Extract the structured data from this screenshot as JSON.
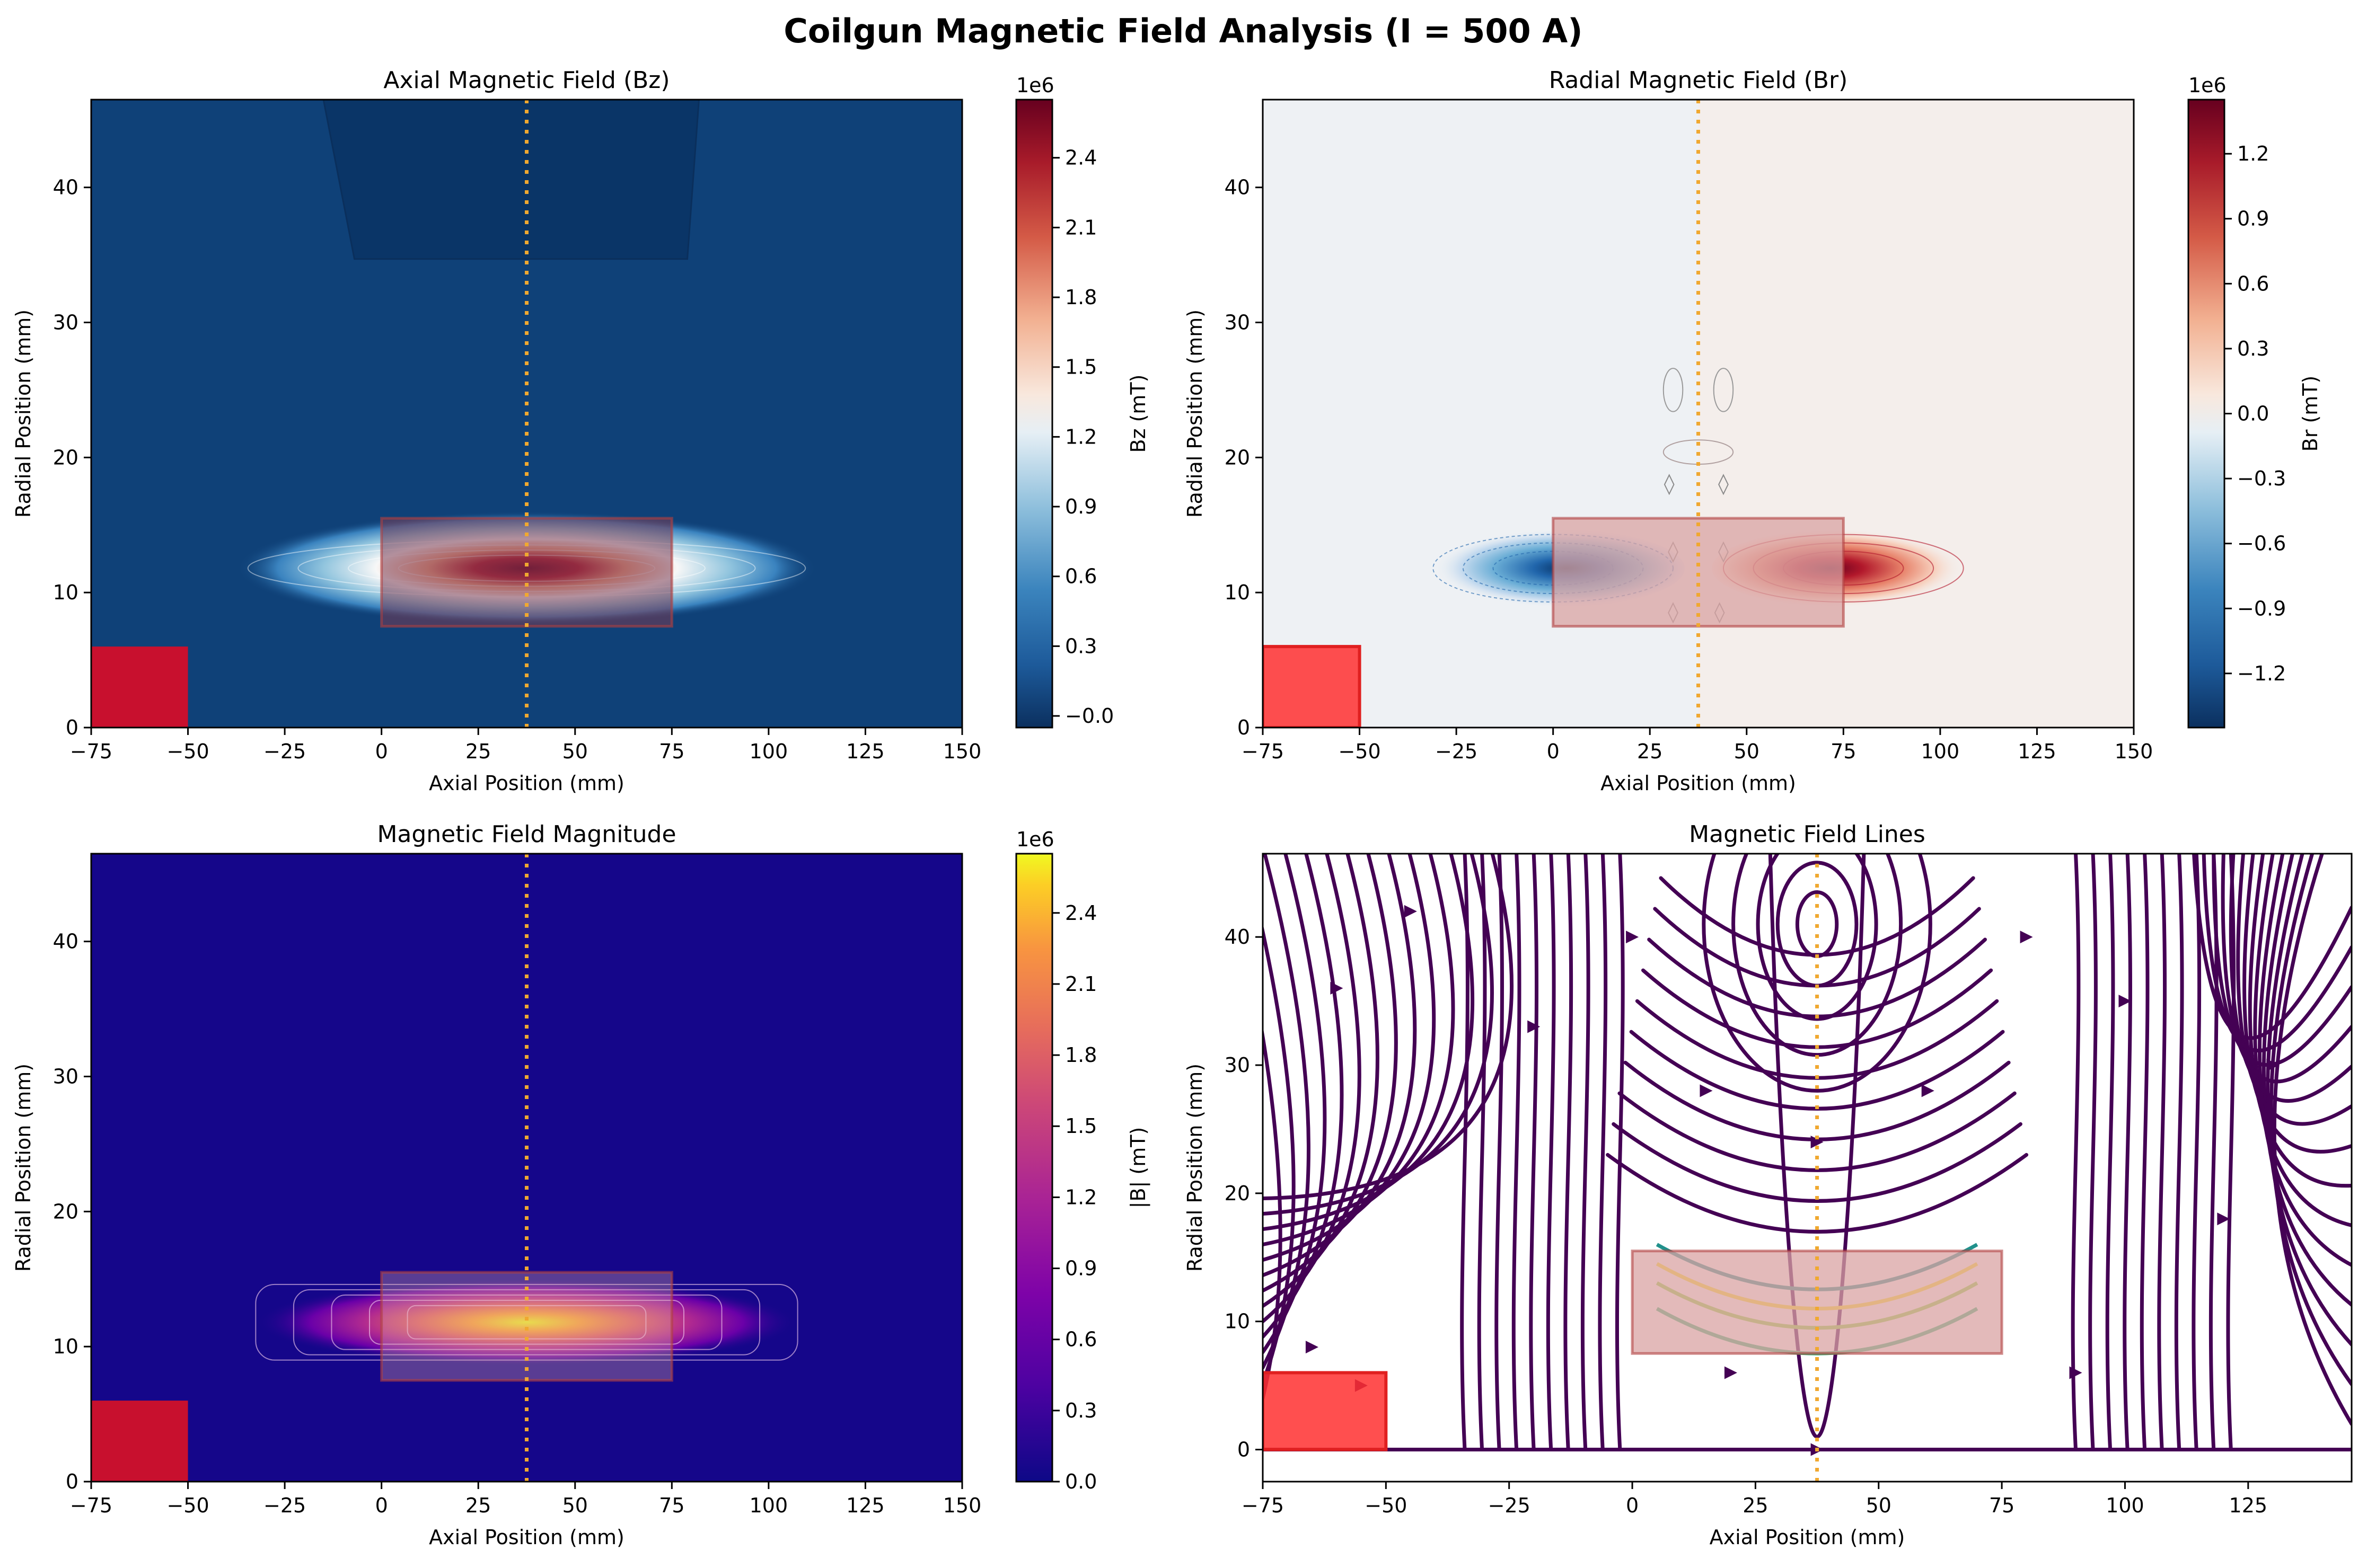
{
  "figure": {
    "suptitle": "Coilgun Magnetic Field Analysis (I = 500 A)"
  },
  "colors": {
    "coil_fill": "#d9a3a3",
    "coil_edge": "#b04040",
    "projectile": "#c8102e",
    "projectile_bright": "#ff3030",
    "marker_line": "#f0a830",
    "bz_background": "#0f4178",
    "bmag_background": "#15068a",
    "br_background_left": "#eef1f4",
    "br_background_right": "#f4eeeb"
  },
  "chart_data": [
    {
      "type": "heatmap",
      "title": "Axial Magnetic Field (Bz)",
      "xlabel": "Axial Position (mm)",
      "ylabel": "Radial Position (mm)",
      "xlim": [
        -75,
        150
      ],
      "ylim": [
        0,
        46.5
      ],
      "xticks": [
        "−75",
        "−50",
        "−25",
        "0",
        "25",
        "50",
        "75",
        "100",
        "125",
        "150"
      ],
      "xtick_values": [
        -75,
        -50,
        -25,
        0,
        25,
        50,
        75,
        100,
        125,
        150
      ],
      "yticks": [
        "0",
        "10",
        "20",
        "30",
        "40"
      ],
      "ytick_values": [
        0,
        10,
        20,
        30,
        40
      ],
      "colormap": "RdBu_r",
      "colorbar": {
        "label": "Bz (mT)",
        "offset": "1e6",
        "range": [
          -0.05,
          2.65
        ],
        "ticks": [
          "−0.0",
          "0.3",
          "0.6",
          "0.9",
          "1.2",
          "1.5",
          "1.8",
          "2.1",
          "2.4"
        ],
        "tick_values": [
          0.0,
          0.3,
          0.6,
          0.9,
          1.2,
          1.5,
          1.8,
          2.1,
          2.4
        ]
      },
      "coil": {
        "x": [
          0,
          75
        ],
        "y": [
          7.5,
          15.5
        ]
      },
      "projectile": {
        "x": [
          -75,
          -50
        ],
        "y": [
          0,
          6
        ]
      },
      "projectile_center_x": 37.5,
      "peak": {
        "x": 37.5,
        "y": 11.8,
        "value_e6": 2.6
      }
    },
    {
      "type": "heatmap",
      "title": "Radial Magnetic Field (Br)",
      "xlabel": "Axial Position (mm)",
      "ylabel": "Radial Position (mm)",
      "xlim": [
        -75,
        150
      ],
      "ylim": [
        0,
        46.5
      ],
      "xticks": [
        "−75",
        "−50",
        "−25",
        "0",
        "25",
        "50",
        "75",
        "100",
        "125",
        "150"
      ],
      "xtick_values": [
        -75,
        -50,
        -25,
        0,
        25,
        50,
        75,
        100,
        125,
        150
      ],
      "yticks": [
        "0",
        "10",
        "20",
        "30",
        "40"
      ],
      "ytick_values": [
        0,
        10,
        20,
        30,
        40
      ],
      "colormap": "RdBu_r",
      "colorbar": {
        "label": "Br (mT)",
        "offset": "1e6",
        "range": [
          -1.45,
          1.45
        ],
        "ticks": [
          "−1.2",
          "−0.9",
          "−0.6",
          "−0.3",
          "0.0",
          "0.3",
          "0.6",
          "0.9",
          "1.2"
        ],
        "tick_values": [
          -1.2,
          -0.9,
          -0.6,
          -0.3,
          0.0,
          0.3,
          0.6,
          0.9,
          1.2
        ]
      },
      "coil": {
        "x": [
          0,
          75
        ],
        "y": [
          7.5,
          15.5
        ]
      },
      "projectile": {
        "x": [
          -75,
          -50
        ],
        "y": [
          0,
          6
        ]
      },
      "projectile_center_x": 37.5,
      "lobes": [
        {
          "x": 0,
          "y": 11.8,
          "value_e6": -1.4
        },
        {
          "x": 75,
          "y": 11.8,
          "value_e6": 1.4
        }
      ]
    },
    {
      "type": "heatmap",
      "title": "Magnetic Field Magnitude",
      "xlabel": "Axial Position (mm)",
      "ylabel": "Radial Position (mm)",
      "xlim": [
        -75,
        150
      ],
      "ylim": [
        0,
        46.5
      ],
      "xticks": [
        "−75",
        "−50",
        "−25",
        "0",
        "25",
        "50",
        "75",
        "100",
        "125",
        "150"
      ],
      "xtick_values": [
        -75,
        -50,
        -25,
        0,
        25,
        50,
        75,
        100,
        125,
        150
      ],
      "yticks": [
        "0",
        "10",
        "20",
        "30",
        "40"
      ],
      "ytick_values": [
        0,
        10,
        20,
        30,
        40
      ],
      "colormap": "plasma",
      "colorbar": {
        "label": "|B| (mT)",
        "offset": "1e6",
        "range": [
          0,
          2.65
        ],
        "ticks": [
          "0.0",
          "0.3",
          "0.6",
          "0.9",
          "1.2",
          "1.5",
          "1.8",
          "2.1",
          "2.4"
        ],
        "tick_values": [
          0.0,
          0.3,
          0.6,
          0.9,
          1.2,
          1.5,
          1.8,
          2.1,
          2.4
        ]
      },
      "coil": {
        "x": [
          0,
          75
        ],
        "y": [
          7.5,
          15.5
        ]
      },
      "projectile": {
        "x": [
          -75,
          -50
        ],
        "y": [
          0,
          6
        ]
      },
      "projectile_center_x": 37.5,
      "peak": {
        "x": 37.5,
        "y": 11.8,
        "value_e6": 2.6
      }
    },
    {
      "type": "streamplot",
      "title": "Magnetic Field Lines",
      "xlabel": "Axial Position (mm)",
      "ylabel": "Radial Position (mm)",
      "xlim": [
        -75,
        146
      ],
      "ylim": [
        -2.5,
        46.5
      ],
      "xticks": [
        "−75",
        "−50",
        "−25",
        "0",
        "25",
        "50",
        "75",
        "100",
        "125"
      ],
      "xtick_values": [
        -75,
        -50,
        -25,
        0,
        25,
        50,
        75,
        100,
        125
      ],
      "yticks": [
        "0",
        "10",
        "20",
        "30",
        "40"
      ],
      "ytick_values": [
        0,
        10,
        20,
        30,
        40
      ],
      "coil": {
        "x": [
          0,
          75
        ],
        "y": [
          7.5,
          15.5
        ]
      },
      "projectile": {
        "x": [
          -75,
          -50
        ],
        "y": [
          0,
          6
        ]
      },
      "projectile_center_x": 37.5
    }
  ]
}
